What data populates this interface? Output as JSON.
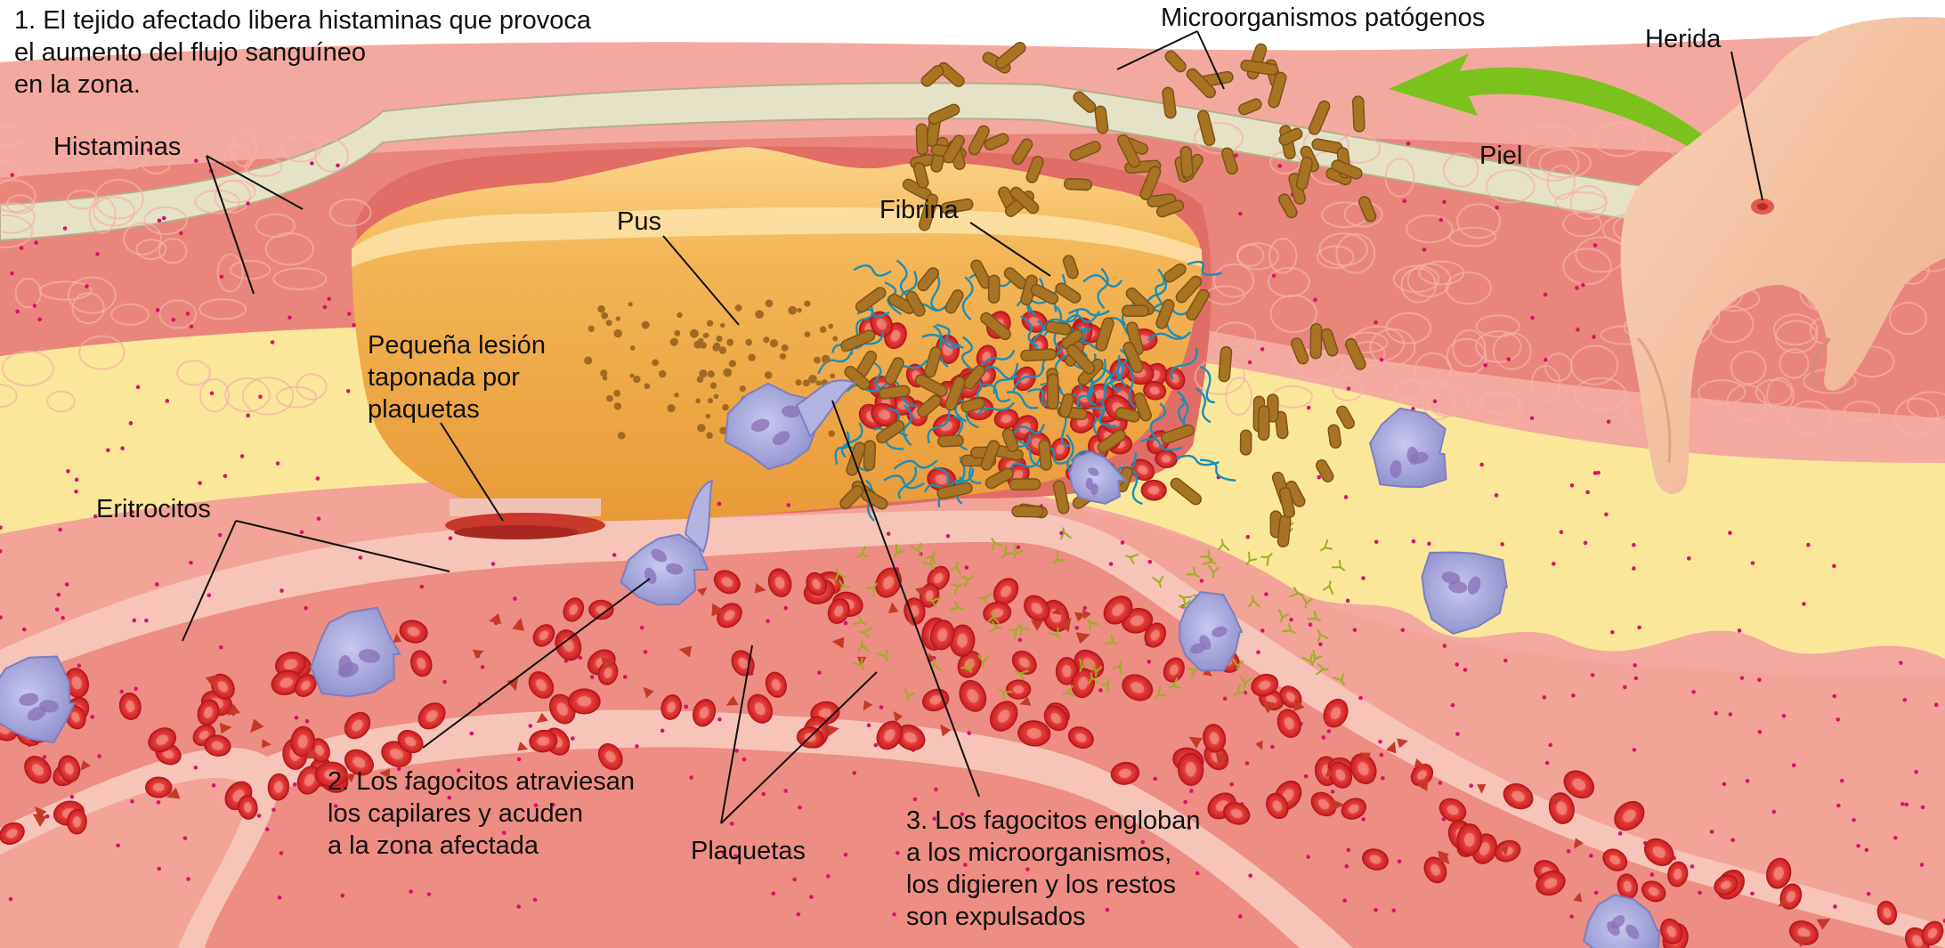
{
  "labels": {
    "step1": [
      "1. El tejido afectado libera histaminas que provoca",
      "el aumento del flujo sanguíneo",
      "en la zona."
    ],
    "histaminas": "Histaminas",
    "microorganismos": "Microorganismos patógenos",
    "herida": "Herida",
    "piel": "Piel",
    "pus": "Pus",
    "fibrina": "Fibrina",
    "lesion": [
      "Pequeña lesión",
      "taponada por",
      "plaquetas"
    ],
    "eritrocitos": "Eritrocitos",
    "step2": [
      "2. Los fagocitos atraviesan",
      "los capilares y acuden",
      "a la zona afectada"
    ],
    "plaquetas": "Plaquetas",
    "step3": [
      "3. Los fagocitos engloban",
      "a los microorganismos,",
      "los digieren y los restos",
      "son expulsados"
    ]
  },
  "colors": {
    "tissue_pink": "#f4a9a0",
    "dermis_red": "#e9857c",
    "skin_surface": "#e6e2c8",
    "fat_yellow": "#fbe79a",
    "pus_orange": "#f3ad4c",
    "vessel_wall": "#f6c4b8",
    "erythrocyte": "#e02a2a",
    "bacteria": "#a87424",
    "fibrin": "#1b8fb8",
    "phagocyte": "#a7a7da",
    "histamine_dot": "#d8136e",
    "arrow_green": "#7cc21d",
    "hand_skin": "#f6c7a6"
  }
}
